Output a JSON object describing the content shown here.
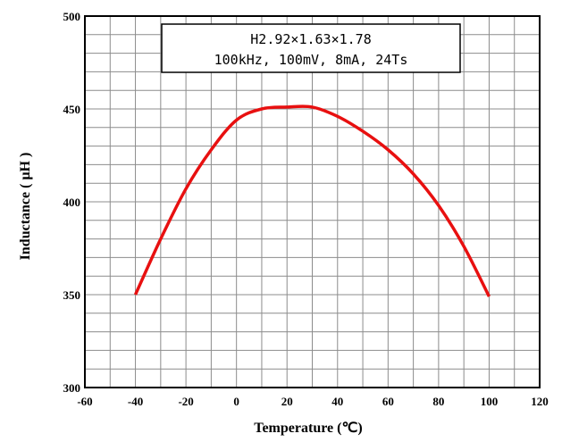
{
  "chart_data": {
    "type": "line",
    "xlabel": "Temperature (℃)",
    "ylabel": "Inductance ( μH )",
    "xlim": [
      -60,
      120
    ],
    "ylim": [
      300,
      500
    ],
    "x_ticks": [
      -60,
      -40,
      -20,
      0,
      20,
      40,
      60,
      80,
      100,
      120
    ],
    "x_tick_labels": [
      "-60",
      "-40",
      "-20",
      "0",
      "20",
      "40",
      "60",
      "80",
      "100",
      "120"
    ],
    "y_ticks": [
      300,
      350,
      400,
      450,
      500
    ],
    "y_tick_labels": [
      "300",
      "350",
      "400",
      "450",
      "500"
    ],
    "grid": true,
    "annotation_lines": [
      "H2.92×1.63×1.78",
      "100kHz, 100mV, 8mA, 24Ts"
    ],
    "series": [
      {
        "color": "#e81010",
        "x": [
          -40,
          -30,
          -20,
          -10,
          0,
          10,
          20,
          30,
          40,
          50,
          60,
          70,
          80,
          90,
          100
        ],
        "y": [
          350,
          380,
          407,
          428,
          444,
          450,
          451,
          451,
          446,
          438,
          428,
          415,
          398,
          376,
          349
        ]
      }
    ]
  }
}
